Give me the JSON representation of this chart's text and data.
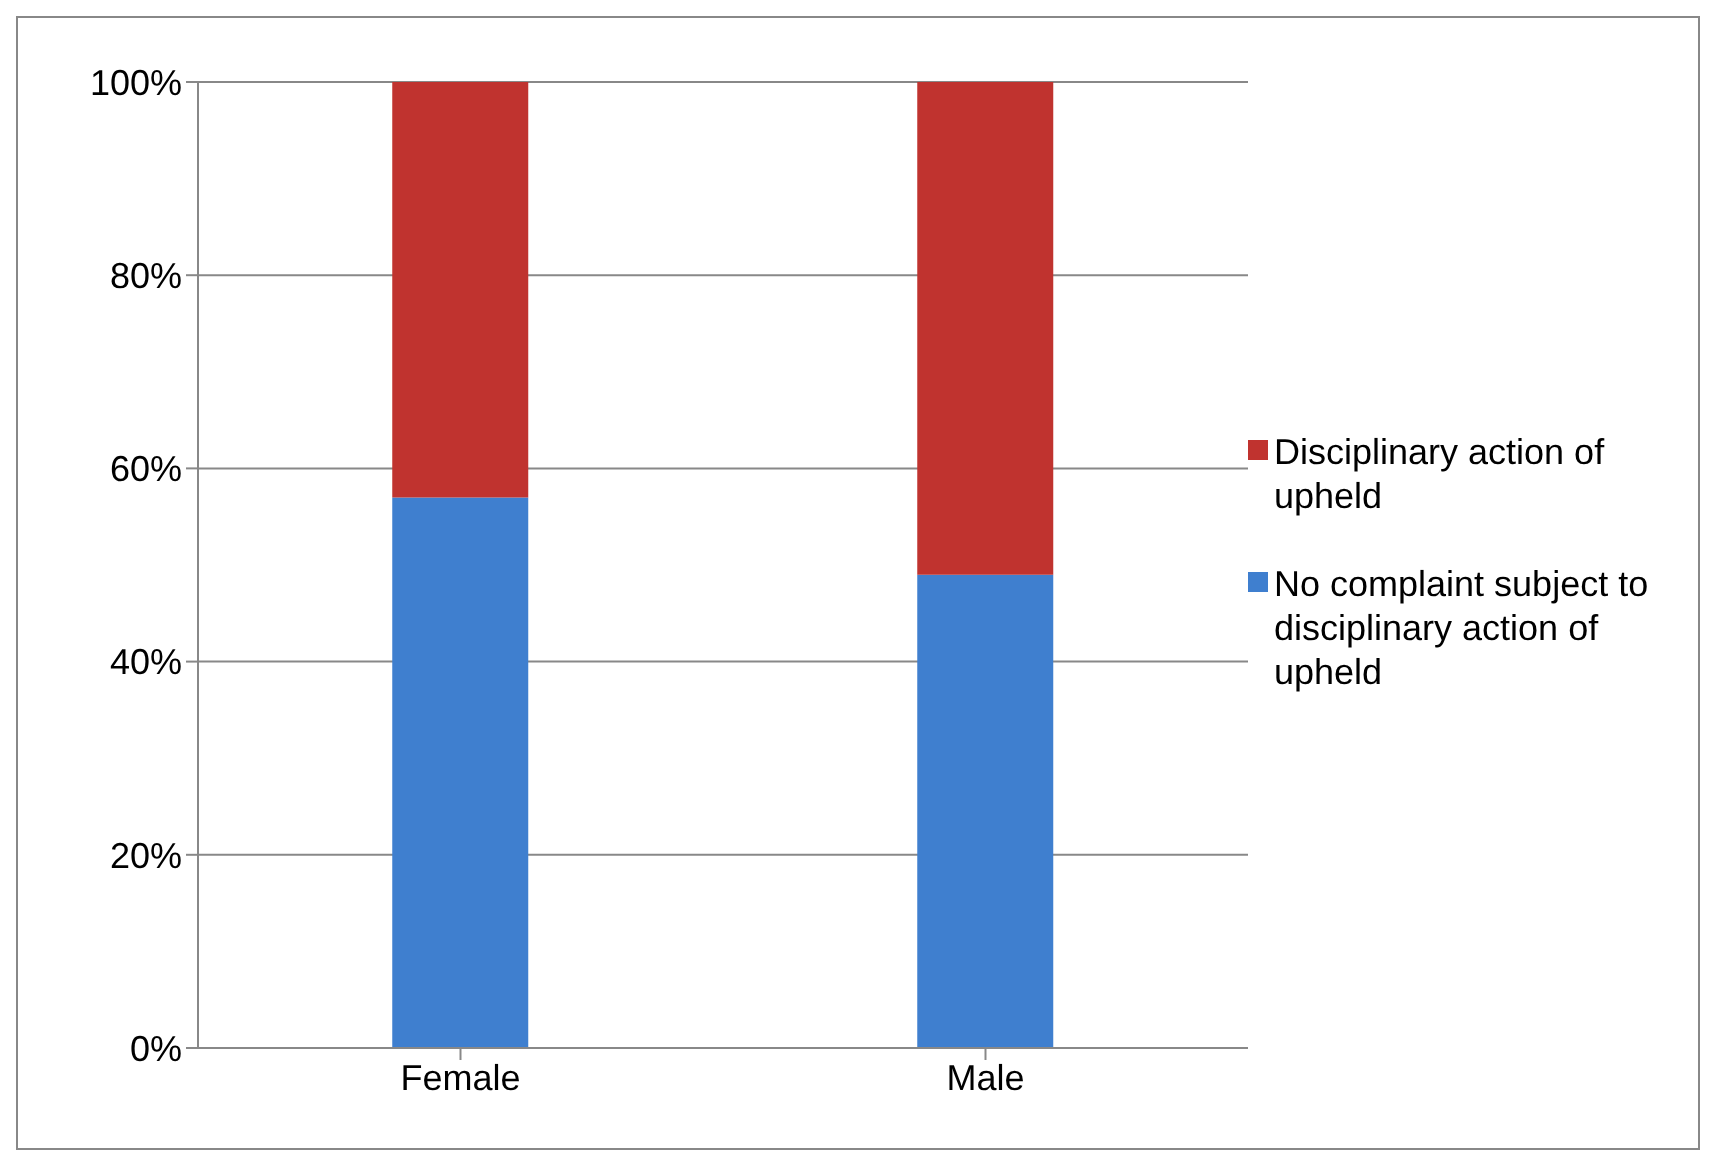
{
  "chart_data": {
    "type": "bar",
    "stacked": true,
    "categories": [
      "Female",
      "Male"
    ],
    "series": [
      {
        "name": "No complaint subject to disciplinary action of upheld",
        "color": "#3f7fcf",
        "values": [
          57,
          49
        ]
      },
      {
        "name": "Disciplinary action of upheld",
        "color": "#c0332f",
        "values": [
          43,
          51
        ]
      }
    ],
    "ylim": [
      0,
      100
    ],
    "yticks": [
      {
        "value": 0,
        "label": "0%"
      },
      {
        "value": 20,
        "label": "20%"
      },
      {
        "value": 40,
        "label": "40%"
      },
      {
        "value": 60,
        "label": "60%"
      },
      {
        "value": 80,
        "label": "80%"
      },
      {
        "value": 100,
        "label": "100%"
      }
    ],
    "grid": "y",
    "legend": "right"
  }
}
